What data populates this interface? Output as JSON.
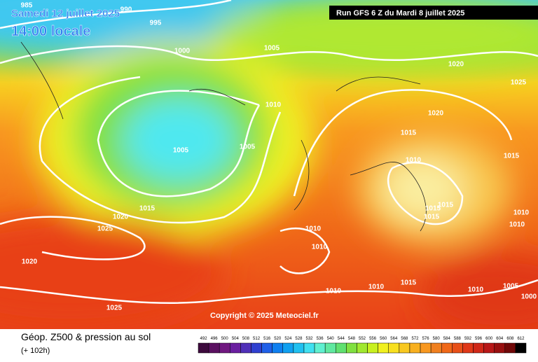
{
  "header": {
    "date": "Samedi 12 juillet 2025",
    "time": "14:00 locale",
    "run": "Run GFS 6 Z du Mardi 8 juillet 2025"
  },
  "isobar_labels": [
    "985",
    "990",
    "995",
    "1000",
    "1005",
    "1020",
    "1025",
    "1010",
    "1020",
    "1015",
    "1015",
    "1005",
    "1005",
    "1010",
    "1015",
    "1015",
    "1015",
    "1015",
    "1020",
    "1025",
    "1010",
    "1010",
    "1010",
    "1010",
    "1020",
    "1015",
    "1010",
    "1010",
    "1010",
    "1005",
    "1000",
    "1025"
  ],
  "copyright": "Copyright © 2025 Meteociel.fr",
  "footer": {
    "title": "Géop. Z500 & pression au sol",
    "lead": "(+ 102h)"
  },
  "scale": {
    "labels": [
      "492",
      "496",
      "500",
      "504",
      "508",
      "512",
      "516",
      "520",
      "524",
      "528",
      "532",
      "536",
      "540",
      "544",
      "548",
      "552",
      "556",
      "560",
      "564",
      "568",
      "572",
      "576",
      "580",
      "584",
      "588",
      "592",
      "596",
      "600",
      "604",
      "608",
      "612"
    ],
    "colors": [
      "#3d0a3d",
      "#5a1060",
      "#701880",
      "#6a1fa0",
      "#5030b8",
      "#3040d0",
      "#2060e8",
      "#1080f0",
      "#10a0f0",
      "#20c0f0",
      "#40e0f0",
      "#60f0d0",
      "#60e8a0",
      "#60e070",
      "#80e040",
      "#a0e830",
      "#c8f020",
      "#f0f020",
      "#f8e020",
      "#f8c820",
      "#f8b020",
      "#f89820",
      "#f08020",
      "#f06818",
      "#e85018",
      "#e03818",
      "#d02818",
      "#b81818",
      "#981010",
      "#700808",
      "#000000"
    ]
  }
}
